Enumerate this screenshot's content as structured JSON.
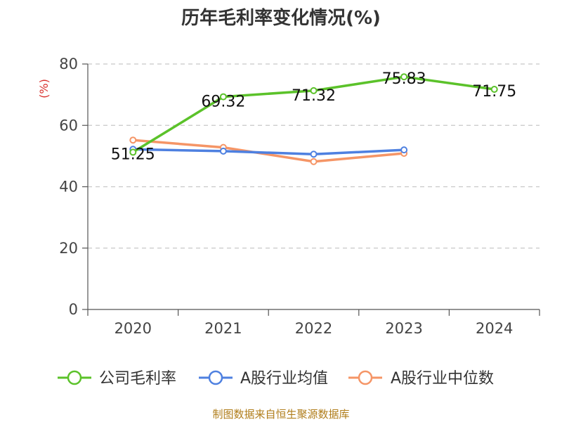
{
  "title": "历年毛利率变化情况(%)",
  "source": "制图数据来自恒生聚源数据库",
  "chart_data": {
    "type": "line",
    "title": "历年毛利率变化情况(%)",
    "ylabel": "(%)",
    "xlabel": "",
    "x": [
      "2020",
      "2021",
      "2022",
      "2023",
      "2024"
    ],
    "ylim": [
      0,
      80
    ],
    "yticks": [
      0,
      20,
      40,
      60,
      80
    ],
    "grid": true,
    "legend_position": "bottom",
    "series": [
      {
        "name": "公司毛利率",
        "color": "#5bc22a",
        "values": [
          51.25,
          69.32,
          71.32,
          75.83,
          71.75
        ],
        "labels": [
          "51.25",
          "69.32",
          "71.32",
          "75.83",
          "71.75"
        ]
      },
      {
        "name": "A股行业均值",
        "color": "#4e80e0",
        "values": [
          52.2,
          51.6,
          50.6,
          52.0,
          null
        ],
        "labels": []
      },
      {
        "name": "A股行业中位数",
        "color": "#f59566",
        "values": [
          55.2,
          52.8,
          48.2,
          50.9,
          null
        ],
        "labels": []
      }
    ]
  }
}
